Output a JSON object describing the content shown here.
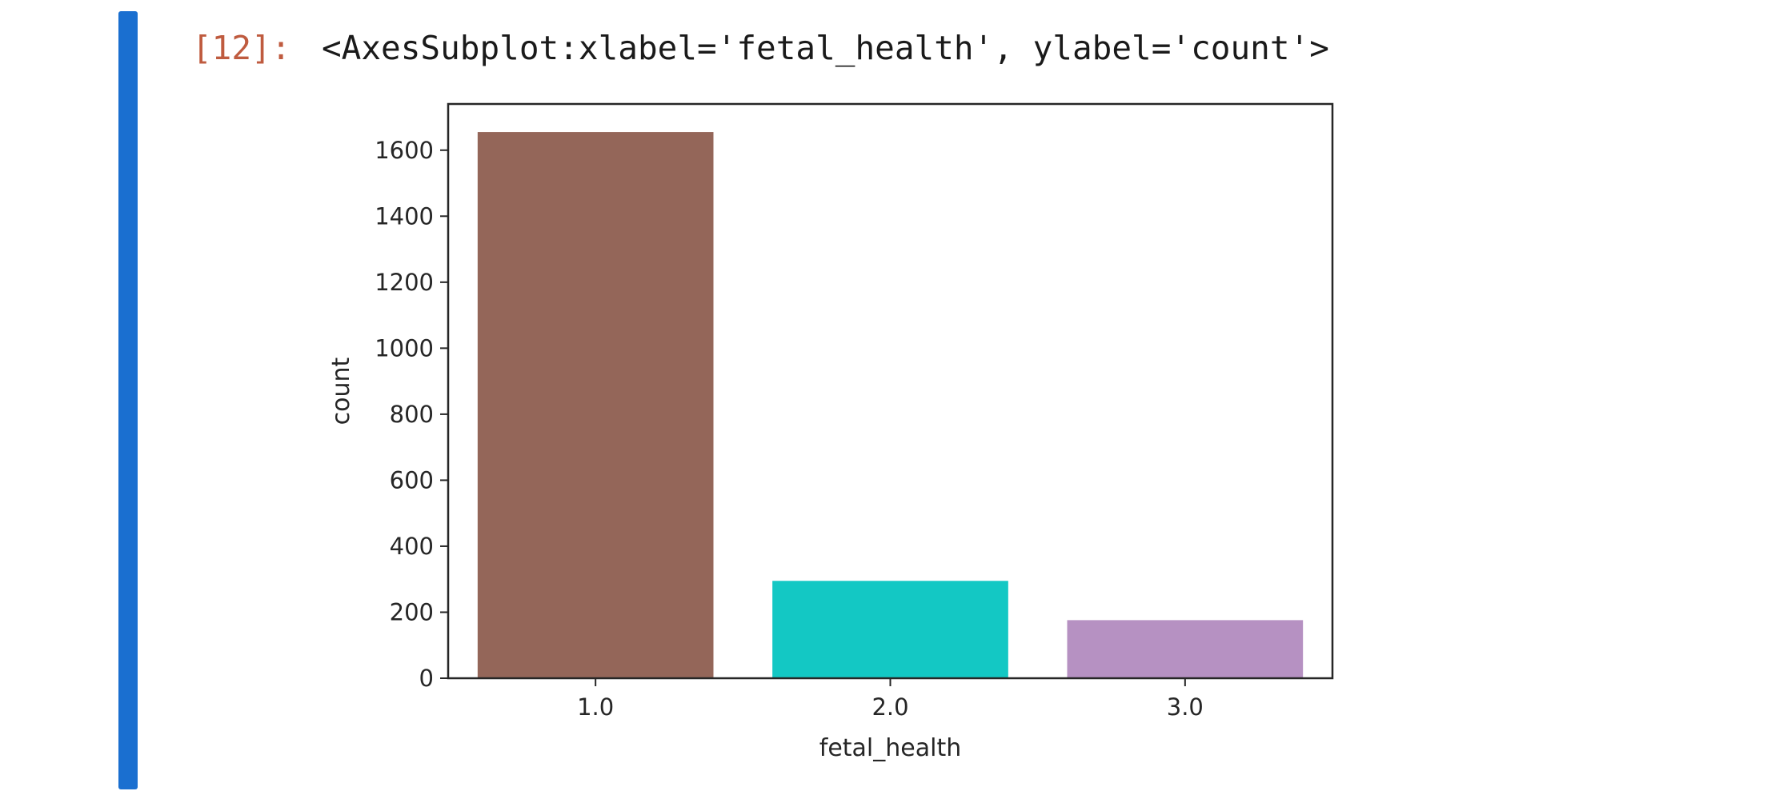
{
  "cell": {
    "prompt": "[12]:",
    "output_text": "<AxesSubplot:xlabel='fetal_health', ylabel='count'>",
    "accent_color": "#1a6fd0"
  },
  "chart_data": {
    "type": "bar",
    "categories": [
      "1.0",
      "2.0",
      "3.0"
    ],
    "values": [
      1655,
      295,
      176
    ],
    "colors": [
      "#946659",
      "#13c8c4",
      "#b691c2"
    ],
    "xlabel": "fetal_health",
    "ylabel": "count",
    "ylim": [
      0,
      1740
    ],
    "yticks": [
      0,
      200,
      400,
      600,
      800,
      1000,
      1200,
      1400,
      1600
    ],
    "grid": false
  }
}
